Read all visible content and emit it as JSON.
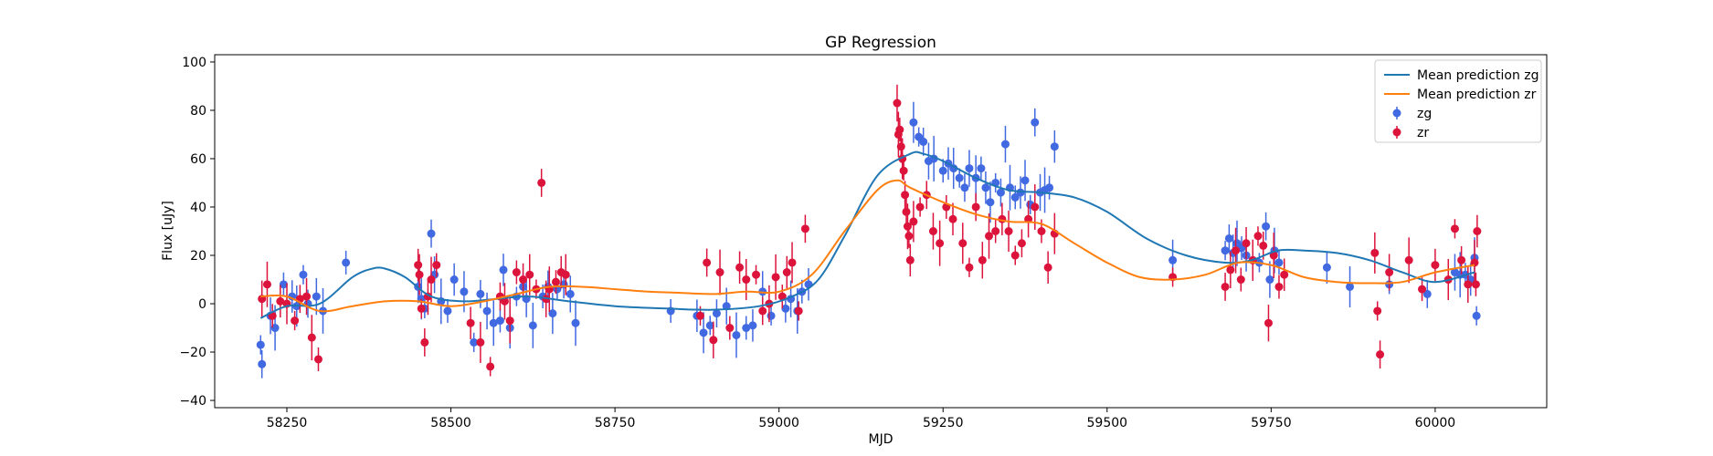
{
  "chart_data": {
    "type": "scatter",
    "title": "GP Regression",
    "xlabel": "MJD",
    "ylabel": "Flux [uJy]",
    "xlim": [
      58140,
      60170
    ],
    "ylim": [
      -43,
      103
    ],
    "xticks": [
      58250,
      58500,
      58750,
      59000,
      59250,
      59500,
      59750,
      60000
    ],
    "yticks": [
      -40,
      -20,
      0,
      20,
      40,
      60,
      80,
      100
    ],
    "legend_position": "top-right",
    "lines": [
      {
        "name": "Mean prediction zg",
        "color": "#1f77b4",
        "x": [
          58210,
          58250,
          58300,
          58350,
          58380,
          58400,
          58430,
          58470,
          58520,
          58570,
          58620,
          58680,
          58750,
          58830,
          58900,
          58970,
          59020,
          59060,
          59100,
          59150,
          59200,
          59220,
          59250,
          59300,
          59350,
          59400,
          59450,
          59500,
          59560,
          59620,
          59680,
          59720,
          59760,
          59800,
          59850,
          59900,
          59950,
          60000,
          60060
        ],
        "y": [
          -6,
          -1,
          0,
          11,
          14.5,
          14.5,
          11,
          3,
          1,
          2,
          3,
          1,
          -1,
          -2,
          -2.5,
          -1,
          3,
          10,
          28,
          53,
          62,
          62,
          59,
          52,
          47,
          46,
          44,
          38,
          27,
          20,
          17,
          18,
          22,
          22,
          21,
          18,
          13,
          9,
          13
        ]
      },
      {
        "name": "Mean prediction zr",
        "color": "#ff7f0e",
        "x": [
          58210,
          58250,
          58300,
          58350,
          58400,
          58450,
          58500,
          58550,
          58600,
          58650,
          58700,
          58750,
          58800,
          58850,
          58900,
          58950,
          59000,
          59050,
          59100,
          59150,
          59180,
          59200,
          59250,
          59300,
          59350,
          59400,
          59450,
          59500,
          59550,
          59600,
          59650,
          59700,
          59750,
          59800,
          59850,
          59900,
          59950,
          60000,
          60060
        ],
        "y": [
          3,
          3,
          -3,
          -1,
          1,
          1,
          -1,
          1,
          4,
          7,
          7,
          6,
          5,
          4.5,
          4,
          5,
          5,
          12,
          30,
          47,
          51,
          48,
          42,
          37,
          34,
          33,
          25,
          17,
          11,
          10,
          12,
          17,
          16,
          11,
          9,
          8.5,
          9,
          13,
          16
        ]
      }
    ],
    "series": [
      {
        "name": "zg",
        "color": "#4169e1",
        "x": [
          58210,
          58212,
          58225,
          58232,
          58245,
          58258,
          58265,
          58275,
          58282,
          58295,
          58305,
          58340,
          58450,
          58455,
          58460,
          58470,
          58475,
          58485,
          58495,
          58505,
          58520,
          58535,
          58545,
          58555,
          58565,
          58575,
          58580,
          58590,
          58600,
          58610,
          58615,
          58625,
          58640,
          58648,
          58655,
          58662,
          58672,
          58682,
          58690,
          58835,
          58875,
          58885,
          58895,
          58905,
          58920,
          58935,
          58950,
          58960,
          58975,
          58988,
          59010,
          59018,
          59028,
          59035,
          59045,
          59205,
          59213,
          59220,
          59228,
          59236,
          59250,
          59258,
          59266,
          59275,
          59283,
          59290,
          59300,
          59308,
          59315,
          59322,
          59330,
          59338,
          59345,
          59352,
          59360,
          59368,
          59375,
          59383,
          59390,
          59398,
          59405,
          59412,
          59420,
          59600,
          59680,
          59686,
          59692,
          59698,
          59705,
          59712,
          59722,
          59732,
          59742,
          59748,
          59755,
          59762,
          59835,
          59870,
          59930,
          59988,
          60030,
          60038,
          60046,
          60054,
          60060,
          60063
        ],
        "y": [
          -17,
          -25,
          -5,
          -10,
          8,
          3,
          -1,
          12,
          0,
          3,
          -3,
          17,
          7,
          2,
          -2,
          29,
          12,
          1,
          -3,
          10,
          5,
          -16,
          4,
          -3,
          -8,
          -7,
          14,
          -10,
          3,
          7,
          2,
          -9,
          3,
          7,
          -4,
          6,
          8,
          4,
          -8,
          -3,
          -5,
          -12,
          -9,
          -4,
          -1,
          -13,
          -10,
          -9,
          5,
          -5,
          -2,
          2,
          -3,
          5,
          8,
          75,
          69,
          67,
          59,
          60,
          55,
          58,
          56,
          52,
          48,
          56,
          52,
          56,
          48,
          42,
          50,
          46,
          66,
          48,
          44,
          46,
          51,
          41,
          75,
          46,
          47,
          48,
          65,
          18,
          22,
          27,
          21,
          25,
          23,
          20,
          18,
          17,
          32,
          10,
          22,
          17,
          15,
          7,
          8,
          4,
          13,
          12,
          12,
          10,
          19,
          -5
        ]
      },
      {
        "name": "zr",
        "color": "#dc143c",
        "x": [
          58212,
          58220,
          58228,
          58240,
          58250,
          58262,
          58270,
          58280,
          58288,
          58298,
          58450,
          58452,
          58455,
          58460,
          58465,
          58470,
          58478,
          58530,
          58545,
          58560,
          58575,
          58582,
          58590,
          58600,
          58610,
          58620,
          58630,
          58638,
          58645,
          58650,
          58660,
          58668,
          58675,
          58880,
          58890,
          58900,
          58910,
          58925,
          58940,
          58950,
          58965,
          58975,
          58985,
          58995,
          59005,
          59012,
          59020,
          59030,
          59040,
          59180,
          59182,
          59184,
          59186,
          59188,
          59190,
          59192,
          59194,
          59196,
          59198,
          59200,
          59205,
          59215,
          59225,
          59235,
          59245,
          59255,
          59265,
          59280,
          59290,
          59300,
          59310,
          59320,
          59330,
          59340,
          59350,
          59360,
          59370,
          59380,
          59390,
          59400,
          59410,
          59420,
          59600,
          59680,
          59688,
          59696,
          59704,
          59712,
          59722,
          59730,
          59738,
          59746,
          59754,
          59762,
          59770,
          59908,
          59912,
          59916,
          59930,
          59960,
          59980,
          60000,
          60020,
          60030,
          60040,
          60050,
          60060,
          60062,
          60064
        ],
        "y": [
          2,
          8,
          -5,
          1,
          0,
          -7,
          2,
          3,
          -14,
          -23,
          16,
          12,
          -2,
          -16,
          3,
          10,
          16,
          -8,
          -16,
          -26,
          3,
          1,
          -7,
          13,
          10,
          12,
          6,
          50,
          2,
          6,
          9,
          13,
          12,
          -5,
          17,
          -15,
          13,
          -10,
          15,
          10,
          12,
          -3,
          0,
          11,
          3,
          13,
          17,
          -3,
          31,
          83,
          70,
          72,
          65,
          60,
          55,
          45,
          38,
          32,
          28,
          18,
          34,
          40,
          45,
          30,
          25,
          40,
          35,
          25,
          15,
          40,
          18,
          28,
          30,
          35,
          30,
          20,
          25,
          35,
          40,
          30,
          15,
          29,
          11,
          7,
          14,
          22,
          10,
          25,
          18,
          28,
          24,
          -8,
          20,
          7,
          12,
          21,
          -3,
          -21,
          13,
          18,
          6,
          16,
          10,
          31,
          18,
          8,
          17,
          8,
          30
        ]
      }
    ]
  }
}
